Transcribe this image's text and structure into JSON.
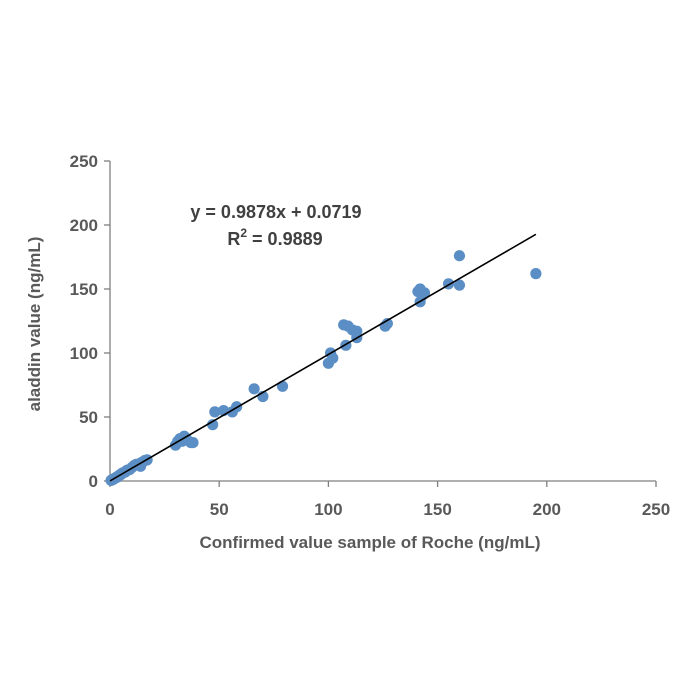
{
  "chart_data": {
    "type": "scatter",
    "xlabel": "Confirmed value sample of Roche (ng/mL)",
    "ylabel": "aladdin value (ng/mL)",
    "xlim": [
      0,
      250
    ],
    "ylim": [
      0,
      250
    ],
    "xticks": [
      "0",
      "50",
      "100",
      "150",
      "200",
      "250"
    ],
    "yticks": [
      "0",
      "50",
      "100",
      "150",
      "200",
      "250"
    ],
    "grid": false,
    "marker_color": "#5b8ec4",
    "trendline_color": "#000000",
    "equation": "y = 0.9878x + 0.0719",
    "r2_prefix": "R",
    "r2_sup": "2",
    "r2_value": " = 0.9889",
    "trendline": {
      "slope": 0.9878,
      "intercept": 0.0719,
      "x_range": [
        0,
        195
      ]
    },
    "points": [
      [
        0.5,
        0.5
      ],
      [
        1,
        1
      ],
      [
        1.5,
        1.2
      ],
      [
        2,
        2
      ],
      [
        2.5,
        2.3
      ],
      [
        3,
        3
      ],
      [
        3.5,
        3.2
      ],
      [
        4,
        4
      ],
      [
        4.5,
        4.8
      ],
      [
        5,
        5
      ],
      [
        5.5,
        6
      ],
      [
        6,
        6.5
      ],
      [
        7,
        7
      ],
      [
        7.5,
        8
      ],
      [
        8,
        8.5
      ],
      [
        9,
        9
      ],
      [
        10,
        10.5
      ],
      [
        11,
        12
      ],
      [
        12,
        13
      ],
      [
        13,
        12.5
      ],
      [
        14,
        14
      ],
      [
        15,
        15
      ],
      [
        16,
        16
      ],
      [
        17,
        16.5
      ],
      [
        14,
        11.5
      ],
      [
        30,
        28
      ],
      [
        31,
        31
      ],
      [
        32,
        33
      ],
      [
        33,
        31
      ],
      [
        34,
        35
      ],
      [
        35,
        33
      ],
      [
        37,
        30
      ],
      [
        38,
        30
      ],
      [
        47,
        44
      ],
      [
        48,
        54
      ],
      [
        52,
        55
      ],
      [
        56,
        54
      ],
      [
        58,
        58
      ],
      [
        66,
        72
      ],
      [
        70,
        66
      ],
      [
        79,
        74
      ],
      [
        100,
        92
      ],
      [
        101,
        100
      ],
      [
        102,
        96
      ],
      [
        107,
        122
      ],
      [
        108,
        106
      ],
      [
        109,
        121
      ],
      [
        111,
        118
      ],
      [
        113,
        112
      ],
      [
        113,
        117
      ],
      [
        126,
        121
      ],
      [
        127,
        123
      ],
      [
        141,
        148
      ],
      [
        142,
        150
      ],
      [
        142,
        140
      ],
      [
        143,
        145
      ],
      [
        144,
        147
      ],
      [
        155,
        154
      ],
      [
        160,
        176
      ],
      [
        160,
        153
      ],
      [
        195,
        162
      ]
    ]
  }
}
